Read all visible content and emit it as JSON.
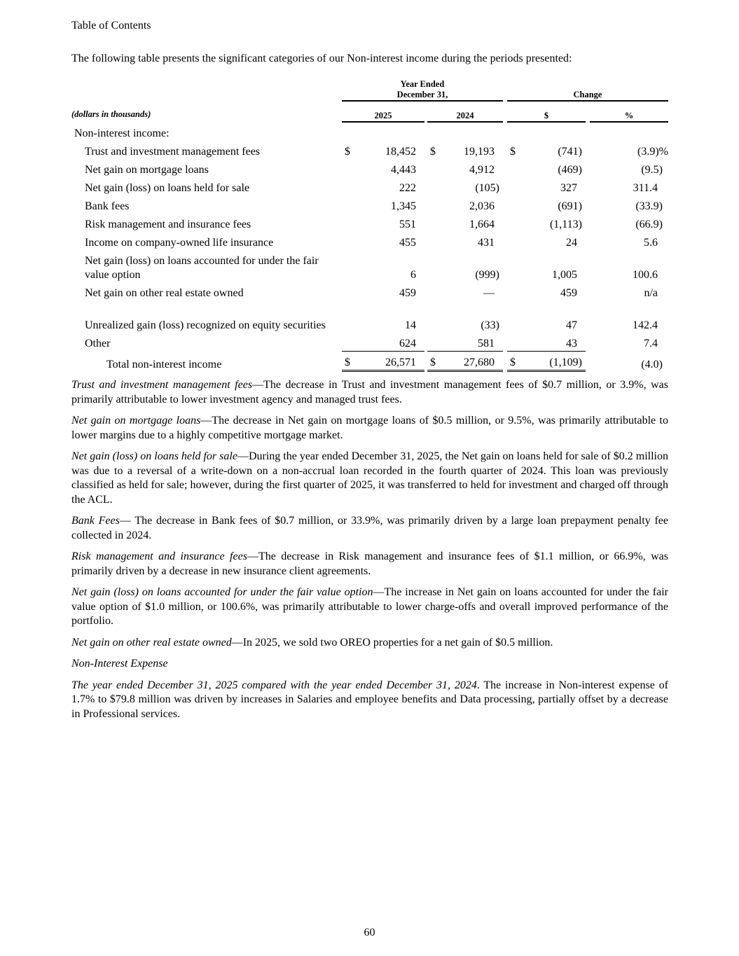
{
  "header": {
    "toc_link": "Table of Contents"
  },
  "intro": "The following table presents the significant categories of our Non-interest income during the periods presented:",
  "table": {
    "group_year": "Year Ended",
    "group_year2": "December 31,",
    "group_change": "Change",
    "units": "(dollars in thousands)",
    "col_2025": "2025",
    "col_2024": "2024",
    "col_dollar": "$",
    "col_pct": "%",
    "section": "Non-interest income:",
    "rows": [
      {
        "label": "Trust and investment management fees",
        "d": "$",
        "v2025": "18,452",
        "v2024": "19,193",
        "chg": "(741)",
        "pct": "(3.9)%"
      },
      {
        "label": "Net gain on mortgage loans",
        "v2025": "4,443",
        "v2024": "4,912",
        "chg": "(469)",
        "pct": "(9.5)"
      },
      {
        "label": "Net gain (loss) on loans held for sale",
        "v2025": "222",
        "v2024": "(105)",
        "chg": "327",
        "pct": "311.4"
      },
      {
        "label": "Bank fees",
        "v2025": "1,345",
        "v2024": "2,036",
        "chg": "(691)",
        "pct": "(33.9)"
      },
      {
        "label": "Risk management and insurance fees",
        "v2025": "551",
        "v2024": "1,664",
        "chg": "(1,113)",
        "pct": "(66.9)"
      },
      {
        "label": "Income on company-owned life insurance",
        "v2025": "455",
        "v2024": "431",
        "chg": "24",
        "pct": "5.6"
      },
      {
        "label": "Net gain (loss) on loans accounted for under the fair value option",
        "two": true,
        "v2025": "6",
        "v2024": "(999)",
        "chg": "1,005",
        "pct": "100.6"
      },
      {
        "label": "Net gain on other real estate owned",
        "v2025": "459",
        "v2024": "—",
        "chg": "459",
        "pct": "n/a"
      },
      {
        "label": "Unrealized gain (loss) recognized on equity securities",
        "two": true,
        "v2025": "14",
        "v2024": "(33)",
        "chg": "47",
        "pct": "142.4"
      },
      {
        "label": "Other",
        "v2025": "624",
        "v2024": "581",
        "chg": "43",
        "pct": "7.4"
      }
    ],
    "total": {
      "label": "Total non-interest income",
      "d": "$",
      "v2025": "26,571",
      "v2024": "27,680",
      "chg": "(1,109)",
      "pct": "(4.0)"
    }
  },
  "paragraphs": [
    {
      "lead": "Trust and investment management fees",
      "body": "—The decrease in Trust and investment management fees of $0.7 million, or 3.9%, was primarily attributable to lower investment agency and managed trust fees."
    },
    {
      "lead": "Net gain on mortgage loans",
      "body": "—The decrease in Net gain on mortgage loans of $0.5 million, or 9.5%, was primarily attributable to lower margins due to a highly competitive mortgage market."
    },
    {
      "lead": "Net gain (loss) on loans held for sale",
      "body": "—During the year ended December 31, 2025, the Net gain on loans held for sale of $0.2 million was due to a reversal of a write-down on a non-accrual loan recorded in the fourth quarter of 2024. This loan was previously classified as held for sale; however, during the first quarter of 2025, it was transferred to held for investment and charged off through the ACL."
    },
    {
      "lead": "Bank Fees",
      "body": "— The decrease in Bank fees of $0.7 million, or 33.9%, was primarily driven by a large loan prepayment penalty fee collected in 2024."
    },
    {
      "lead": "Risk management and insurance fees",
      "body": "—The decrease in Risk management and insurance fees of $1.1 million, or 66.9%, was primarily driven by a decrease in new insurance client agreements."
    },
    {
      "lead": "Net gain (loss) on loans accounted for under the fair value option",
      "body": "—The increase in Net gain on loans accounted for under the fair value option of $1.0 million, or 100.6%, was primarily attributable to lower charge-offs and overall improved performance of the portfolio."
    },
    {
      "lead": "Net gain on other real estate owned",
      "body": "—In 2025, we sold two OREO properties for a net gain of $0.5 million."
    },
    {
      "lead": "Non-Interest Expense",
      "body": "",
      "heading": true
    },
    {
      "lead": "The year ended December 31, 2025 compared with the year ended December 31, 2024",
      "body": ". The increase in Non-interest expense of 1.7% to $79.8 million was driven by increases in Salaries and employee benefits and Data processing, partially offset by a decrease in Professional services."
    }
  ],
  "footer": {
    "page_number": "60"
  }
}
